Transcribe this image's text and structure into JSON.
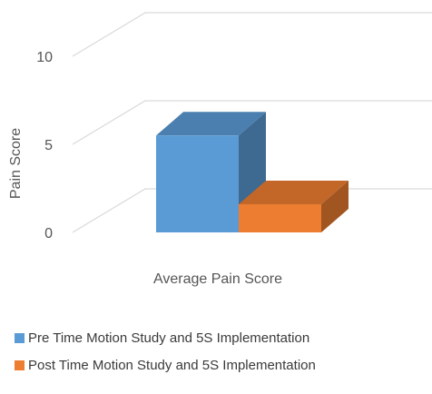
{
  "chart_data": {
    "type": "bar",
    "title": "",
    "xlabel": "",
    "ylabel": "Pain Score",
    "categories": [
      "Average Pain Score"
    ],
    "ylim": [
      0,
      10
    ],
    "yticks": [
      0,
      5,
      10
    ],
    "grid": true,
    "legend_position": "bottom",
    "series": [
      {
        "name": "Pre Time Motion Study and 5S Implementation",
        "values": [
          5.5
        ],
        "color": "#5b9bd5"
      },
      {
        "name": "Post Time Motion Study and 5S Implementation",
        "values": [
          1.6
        ],
        "color": "#ed7d31"
      }
    ]
  }
}
